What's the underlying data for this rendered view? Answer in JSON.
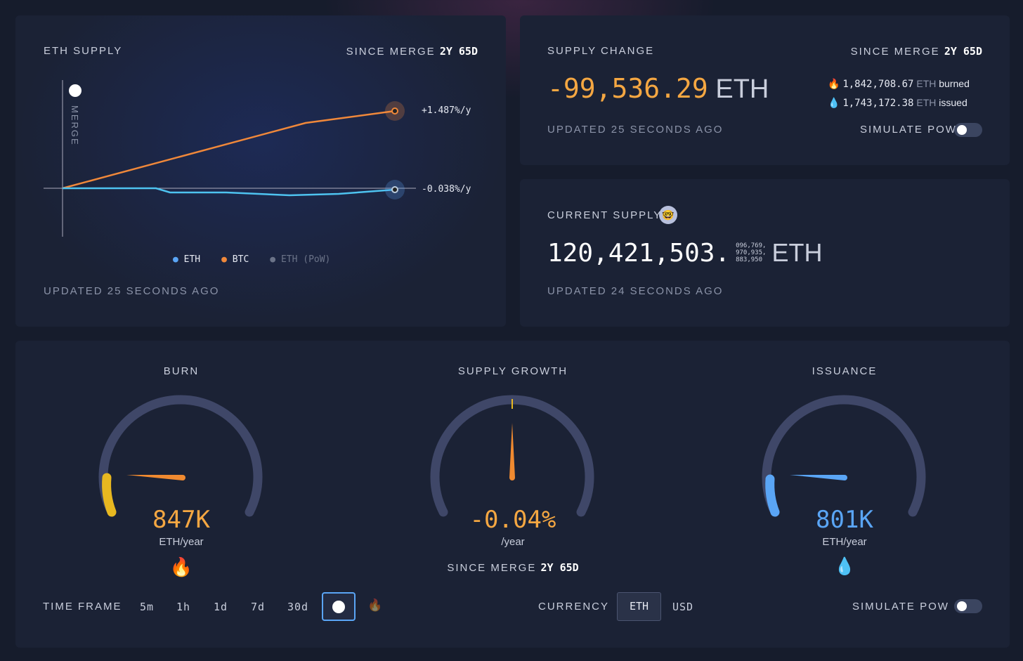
{
  "supply_chart": {
    "title": "ETH SUPPLY",
    "since_label": "SINCE MERGE",
    "since_value": "2y 65d",
    "merge_label": "MERGE",
    "btc_rate": "+1.487%/y",
    "eth_rate": "-0.038%/y",
    "legend": [
      "ETH",
      "BTC",
      "ETH (PoW)"
    ],
    "updated": "UPDATED 25 SECONDS AGO"
  },
  "chart_data": {
    "type": "line",
    "series": [
      {
        "name": "BTC",
        "values": [
          0,
          0.45,
          0.9,
          1.22,
          1.487
        ]
      },
      {
        "name": "ETH",
        "values": [
          0,
          -0.005,
          -0.09,
          -0.1,
          -0.038
        ]
      }
    ],
    "colors": {
      "ETH": "#5aa5f5",
      "BTC": "#f0883a",
      "ETH (PoW)": "#6b7388"
    }
  },
  "supply_change": {
    "title": "SUPPLY CHANGE",
    "since_label": "SINCE MERGE",
    "since_value": "2y 65d",
    "value": "-99,536.29",
    "unit": "ETH",
    "burned_amount": "1,842,708.67",
    "burned_unit": "ETH",
    "burned_label": "burned",
    "issued_amount": "1,743,172.38",
    "issued_unit": "ETH",
    "issued_label": "issued",
    "updated": "UPDATED 25 SECONDS AGO",
    "simulate": "SIMULATE PoW",
    "simulate_on": false
  },
  "current_supply": {
    "title": "CURRENT SUPPLY",
    "integer": "120,421,503.",
    "decimals_1": "096,769,",
    "decimals_2": "970,935,",
    "decimals_3": "883,950",
    "unit": "ETH",
    "updated": "UPDATED 24 SECONDS AGO"
  },
  "gauges": {
    "burn": {
      "title": "BURN",
      "value": "847K",
      "unit": "ETH/year"
    },
    "growth": {
      "title": "SUPPLY GROWTH",
      "value": "-0.04%",
      "unit": "/year",
      "since_label": "SINCE MERGE",
      "since_value": "2y 65d"
    },
    "issuance": {
      "title": "ISSUANCE",
      "value": "801K",
      "unit": "ETH/year"
    }
  },
  "controls": {
    "time_frame": "TIME FRAME",
    "frames": [
      "5m",
      "1h",
      "1d",
      "7d",
      "30d"
    ],
    "selected": "since-merge",
    "currency": "CURRENCY",
    "currencies": [
      "ETH",
      "USD"
    ],
    "selected_currency": "ETH",
    "simulate": "SIMULATE PoW",
    "simulate_on": false
  }
}
